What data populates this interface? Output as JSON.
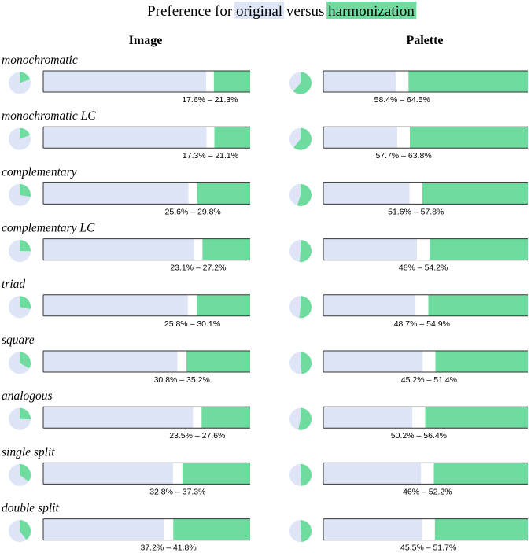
{
  "chart_data": {
    "type": "bar",
    "title": {
      "prefix": "Preference for",
      "original_label": "original",
      "middle": "versus",
      "harmonization_label": "harmonization"
    },
    "panels": [
      "Image",
      "Palette"
    ],
    "categories": [
      "monochromatic",
      "monochromatic LC",
      "complementary",
      "complementary LC",
      "triad",
      "square",
      "analogous",
      "single split",
      "double split"
    ],
    "series": [
      {
        "name": "Image",
        "intervals": [
          [
            17.6,
            21.3
          ],
          [
            17.3,
            21.1
          ],
          [
            25.6,
            29.8
          ],
          [
            23.1,
            27.2
          ],
          [
            25.8,
            30.1
          ],
          [
            30.8,
            35.2
          ],
          [
            23.5,
            27.6
          ],
          [
            32.8,
            37.3
          ],
          [
            37.2,
            41.8
          ]
        ],
        "interval_labels": [
          "17.6% – 21.3%",
          "17.3% – 21.1%",
          "25.6% – 29.8%",
          "23.1% – 27.2%",
          "25.8% – 30.1%",
          "30.8% – 35.2%",
          "23.5% – 27.6%",
          "32.8% – 37.3%",
          "37.2% – 41.8%"
        ]
      },
      {
        "name": "Palette",
        "intervals": [
          [
            58.4,
            64.5
          ],
          [
            57.7,
            63.8
          ],
          [
            51.6,
            57.8
          ],
          [
            48.0,
            54.2
          ],
          [
            48.7,
            54.9
          ],
          [
            45.2,
            51.4
          ],
          [
            50.2,
            56.4
          ],
          [
            46.0,
            52.2
          ],
          [
            45.5,
            51.7
          ]
        ],
        "interval_labels": [
          "58.4% – 64.5%",
          "57.7% – 63.8%",
          "51.6% – 57.8%",
          "48% – 54.2%",
          "48.7% – 54.9%",
          "45.2% – 51.4%",
          "50.2% – 56.4%",
          "46% – 52.2%",
          "45.5% – 51.7%"
        ]
      }
    ],
    "value_meaning": "percent preferring harmonization",
    "xlim": [
      0,
      100
    ],
    "colors": {
      "original": "#dde5f7",
      "harmonization": "#6ddc9e",
      "uncertainty_band": "#ffffff",
      "axis_line": "#333333"
    }
  }
}
